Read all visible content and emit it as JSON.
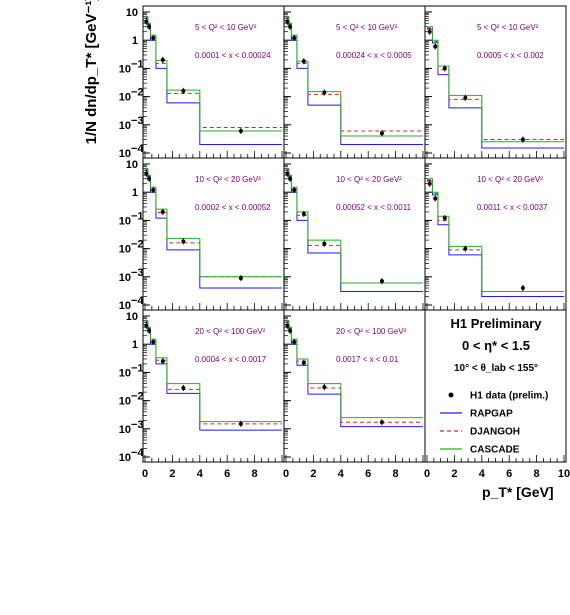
{
  "figure": {
    "title": "H1 Preliminary",
    "eta_range": "0 < η* < 1.5",
    "theta_range": "10° < θ_lab < 155°",
    "ylabel": "1/N dn/dp_T* [GeV⁻¹]",
    "xlabel": "p_T* [GeV]"
  },
  "legend": {
    "entries": [
      {
        "name": "H1 data (prelim.)",
        "marker": "dot",
        "color": "#000000"
      },
      {
        "name": "RAPGAP",
        "marker": "line",
        "color": "#1a1aff"
      },
      {
        "name": "DJANGOH",
        "marker": "dash",
        "color": "#e02020"
      },
      {
        "name": "CASCADE",
        "marker": "line",
        "color": "#20b020"
      }
    ]
  },
  "chart_data": [
    {
      "type": "scatter",
      "q2_label": "5 < Q² < 10 GeV²",
      "x_label": "0.0001 < x < 0.00024",
      "xlim": [
        0,
        10
      ],
      "ylim": [
        0.0001,
        10
      ],
      "yscale": "log",
      "data": {
        "x": [
          0.1,
          0.3,
          0.6,
          1.3,
          2.8,
          7.0
        ],
        "y": [
          4.5,
          3.0,
          1.2,
          0.2,
          0.016,
          0.0006
        ]
      },
      "bin_edges": [
        0,
        0.2,
        0.4,
        0.8,
        1.6,
        2.4,
        4,
        10
      ],
      "series": [
        {
          "name": "RAPGAP",
          "values": [
            6.0,
            3.5,
            1.0,
            0.1,
            0.006,
            0.006,
            0.0002
          ]
        },
        {
          "name": "DJANGOH",
          "values": [
            6.5,
            3.8,
            1.3,
            0.15,
            0.013,
            0.013,
            0.0008
          ]
        },
        {
          "name": "CASCADE",
          "values": [
            7.0,
            4.0,
            1.5,
            0.19,
            0.017,
            0.017,
            0.0006
          ]
        }
      ]
    },
    {
      "type": "scatter",
      "q2_label": "5 < Q² < 10 GeV²",
      "x_label": "0.00024 < x < 0.0005",
      "xlim": [
        0,
        10
      ],
      "ylim": [
        0.0001,
        10
      ],
      "yscale": "log",
      "data": {
        "x": [
          0.1,
          0.3,
          0.6,
          1.3,
          2.8,
          7.0
        ],
        "y": [
          4.5,
          3.0,
          1.2,
          0.18,
          0.014,
          0.0005
        ]
      },
      "bin_edges": [
        0,
        0.2,
        0.4,
        0.8,
        1.6,
        2.4,
        4,
        10
      ],
      "series": [
        {
          "name": "RAPGAP",
          "values": [
            6.0,
            3.5,
            1.0,
            0.1,
            0.005,
            0.005,
            0.0002
          ]
        },
        {
          "name": "DJANGOH",
          "values": [
            6.5,
            3.8,
            1.3,
            0.15,
            0.012,
            0.012,
            0.0006
          ]
        },
        {
          "name": "CASCADE",
          "values": [
            7.0,
            4.0,
            1.5,
            0.18,
            0.015,
            0.015,
            0.0004
          ]
        }
      ]
    },
    {
      "type": "scatter",
      "q2_label": "5 < Q² < 10 GeV²",
      "x_label": "0.0005 < x < 0.002",
      "xlim": [
        0,
        10
      ],
      "ylim": [
        0.0001,
        10
      ],
      "yscale": "log",
      "data": {
        "x": [
          0.2,
          0.6,
          1.3,
          2.8,
          7.0
        ],
        "y": [
          2.0,
          0.6,
          0.1,
          0.009,
          0.0003
        ]
      },
      "bin_edges": [
        0,
        0.4,
        0.8,
        1.6,
        2.4,
        4,
        10
      ],
      "series": [
        {
          "name": "RAPGAP",
          "values": [
            2.5,
            0.8,
            0.06,
            0.004,
            0.004,
            0.00015
          ]
        },
        {
          "name": "DJANGOH",
          "values": [
            2.7,
            0.9,
            0.09,
            0.008,
            0.008,
            0.0003
          ]
        },
        {
          "name": "CASCADE",
          "values": [
            3.0,
            1.0,
            0.12,
            0.011,
            0.011,
            0.00025
          ]
        }
      ]
    },
    {
      "type": "scatter",
      "q2_label": "10 < Q² < 20 GeV²",
      "x_label": "0.0002 < x < 0.00052",
      "xlim": [
        0,
        10
      ],
      "ylim": [
        0.0001,
        10
      ],
      "yscale": "log",
      "data": {
        "x": [
          0.1,
          0.3,
          0.6,
          1.3,
          2.8,
          7.0
        ],
        "y": [
          4.5,
          3.0,
          1.2,
          0.2,
          0.018,
          0.0009
        ]
      },
      "bin_edges": [
        0,
        0.2,
        0.4,
        0.8,
        1.6,
        2.4,
        4,
        10
      ],
      "series": [
        {
          "name": "RAPGAP",
          "values": [
            6.0,
            3.5,
            1.0,
            0.12,
            0.009,
            0.009,
            0.0004
          ]
        },
        {
          "name": "DJANGOH",
          "values": [
            6.5,
            3.8,
            1.3,
            0.19,
            0.016,
            0.016,
            0.001
          ]
        },
        {
          "name": "CASCADE",
          "values": [
            7.0,
            4.0,
            1.5,
            0.25,
            0.023,
            0.023,
            0.001
          ]
        }
      ]
    },
    {
      "type": "scatter",
      "q2_label": "10 < Q² < 20 GeV²",
      "x_label": "0.00052 < x < 0.0011",
      "xlim": [
        0,
        10
      ],
      "ylim": [
        0.0001,
        10
      ],
      "yscale": "log",
      "data": {
        "x": [
          0.1,
          0.3,
          0.6,
          1.3,
          2.8,
          7.0
        ],
        "y": [
          4.5,
          3.0,
          1.2,
          0.17,
          0.015,
          0.0007
        ]
      },
      "bin_edges": [
        0,
        0.2,
        0.4,
        0.8,
        1.6,
        2.4,
        4,
        10
      ],
      "series": [
        {
          "name": "RAPGAP",
          "values": [
            6.0,
            3.5,
            1.0,
            0.1,
            0.007,
            0.007,
            0.0003
          ]
        },
        {
          "name": "DJANGOH",
          "values": [
            6.5,
            3.8,
            1.3,
            0.15,
            0.013,
            0.013,
            0.0006
          ]
        },
        {
          "name": "CASCADE",
          "values": [
            7.0,
            4.0,
            1.5,
            0.2,
            0.02,
            0.02,
            0.0006
          ]
        }
      ]
    },
    {
      "type": "scatter",
      "q2_label": "10 < Q² < 20 GeV²",
      "x_label": "0.0011 < x < 0.0037",
      "xlim": [
        0,
        10
      ],
      "ylim": [
        0.0001,
        10
      ],
      "yscale": "log",
      "data": {
        "x": [
          0.2,
          0.6,
          1.3,
          2.8,
          7.0
        ],
        "y": [
          2.0,
          0.6,
          0.12,
          0.01,
          0.0004
        ]
      },
      "bin_edges": [
        0,
        0.4,
        0.8,
        1.6,
        2.4,
        4,
        10
      ],
      "series": [
        {
          "name": "RAPGAP",
          "values": [
            2.5,
            0.8,
            0.07,
            0.006,
            0.006,
            0.0002
          ]
        },
        {
          "name": "DJANGOH",
          "values": [
            2.7,
            0.9,
            0.1,
            0.009,
            0.009,
            0.0003
          ]
        },
        {
          "name": "CASCADE",
          "values": [
            3.0,
            1.0,
            0.14,
            0.012,
            0.012,
            0.0003
          ]
        }
      ]
    },
    {
      "type": "scatter",
      "q2_label": "20 < Q² < 100 GeV²",
      "x_label": "0.0004 < x < 0.0017",
      "xlim": [
        0,
        10
      ],
      "ylim": [
        0.0001,
        10
      ],
      "yscale": "log",
      "data": {
        "x": [
          0.1,
          0.3,
          0.6,
          1.3,
          2.8,
          7.0
        ],
        "y": [
          4.5,
          3.0,
          1.2,
          0.25,
          0.028,
          0.0015
        ]
      },
      "bin_edges": [
        0,
        0.2,
        0.4,
        0.8,
        1.6,
        2.4,
        4,
        10
      ],
      "series": [
        {
          "name": "RAPGAP",
          "values": [
            6.0,
            3.5,
            1.0,
            0.2,
            0.018,
            0.018,
            0.0009
          ]
        },
        {
          "name": "DJANGOH",
          "values": [
            6.5,
            3.8,
            1.3,
            0.27,
            0.025,
            0.025,
            0.0015
          ]
        },
        {
          "name": "CASCADE",
          "values": [
            7.0,
            4.0,
            1.5,
            0.33,
            0.04,
            0.04,
            0.0018
          ]
        }
      ]
    },
    {
      "type": "scatter",
      "q2_label": "20 < Q² < 100 GeV²",
      "x_label": "0.0017 < x < 0.01",
      "xlim": [
        0,
        10
      ],
      "ylim": [
        0.0001,
        10
      ],
      "yscale": "log",
      "data": {
        "x": [
          0.1,
          0.3,
          0.6,
          1.3,
          2.8,
          7.0
        ],
        "y": [
          4.5,
          3.0,
          1.2,
          0.22,
          0.03,
          0.0017
        ]
      },
      "bin_edges": [
        0,
        0.2,
        0.4,
        0.8,
        1.6,
        2.4,
        4,
        10
      ],
      "series": [
        {
          "name": "RAPGAP",
          "values": [
            6.0,
            3.5,
            1.0,
            0.18,
            0.017,
            0.017,
            0.0012
          ]
        },
        {
          "name": "DJANGOH",
          "values": [
            6.5,
            3.8,
            1.3,
            0.25,
            0.028,
            0.028,
            0.0017
          ]
        },
        {
          "name": "CASCADE",
          "values": [
            7.0,
            4.0,
            1.5,
            0.3,
            0.04,
            0.04,
            0.0025
          ]
        }
      ]
    }
  ]
}
